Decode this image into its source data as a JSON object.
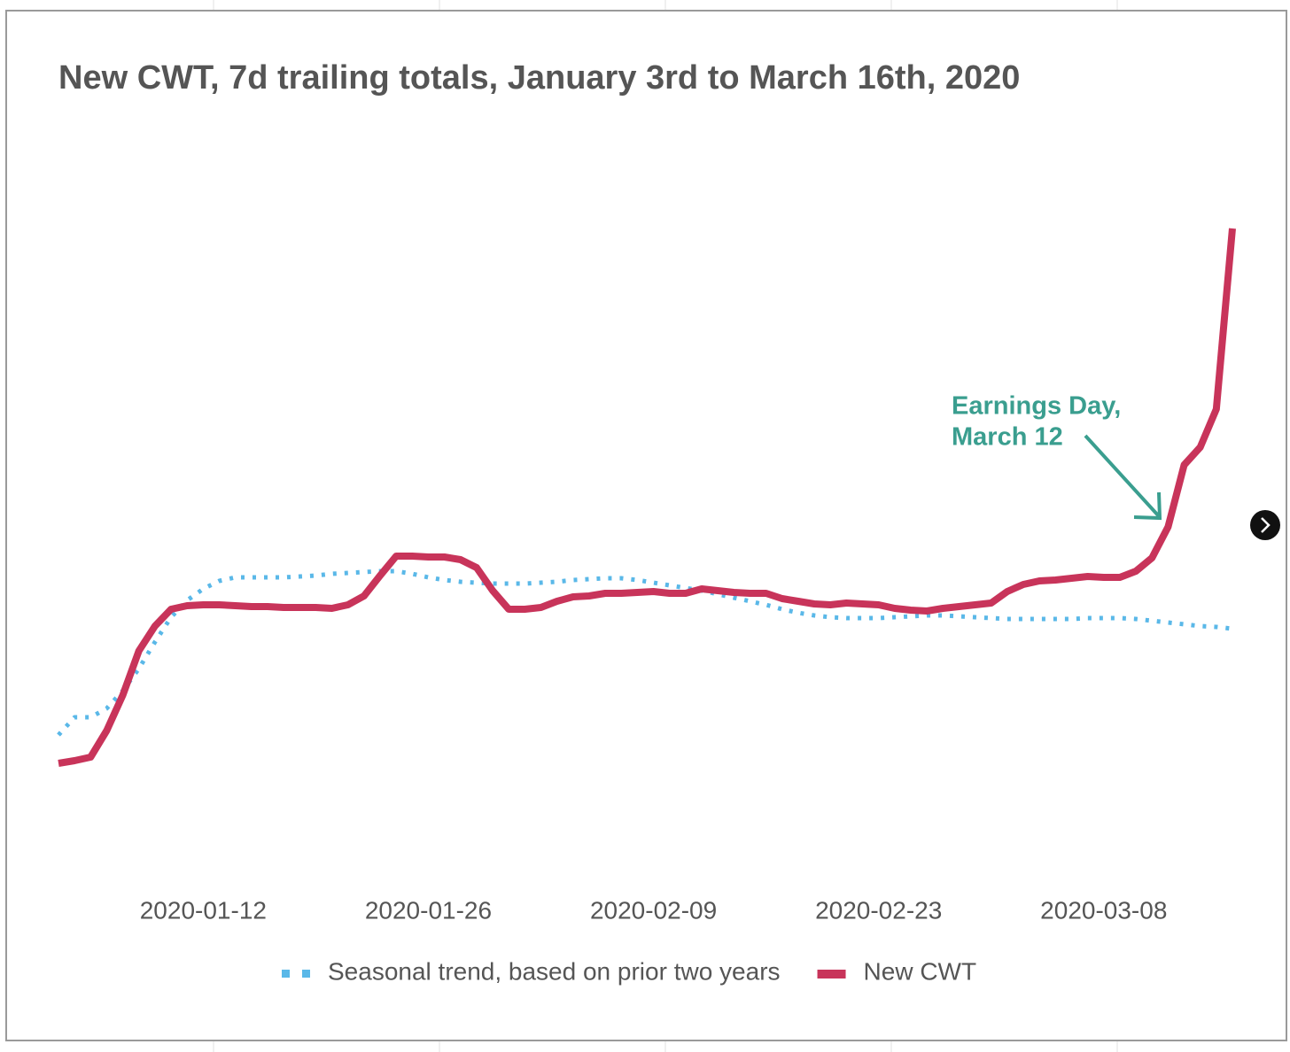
{
  "chart_data": {
    "type": "line",
    "title": "New CWT, 7d trailing totals, January 3rd to March 16th, 2020",
    "x": [
      "2020-01-03",
      "2020-01-04",
      "2020-01-05",
      "2020-01-06",
      "2020-01-07",
      "2020-01-08",
      "2020-01-09",
      "2020-01-10",
      "2020-01-11",
      "2020-01-12",
      "2020-01-13",
      "2020-01-14",
      "2020-01-15",
      "2020-01-16",
      "2020-01-17",
      "2020-01-18",
      "2020-01-19",
      "2020-01-20",
      "2020-01-21",
      "2020-01-22",
      "2020-01-23",
      "2020-01-24",
      "2020-01-25",
      "2020-01-26",
      "2020-01-27",
      "2020-01-28",
      "2020-01-29",
      "2020-01-30",
      "2020-01-31",
      "2020-02-01",
      "2020-02-02",
      "2020-02-03",
      "2020-02-04",
      "2020-02-05",
      "2020-02-06",
      "2020-02-07",
      "2020-02-08",
      "2020-02-09",
      "2020-02-10",
      "2020-02-11",
      "2020-02-12",
      "2020-02-13",
      "2020-02-14",
      "2020-02-15",
      "2020-02-16",
      "2020-02-17",
      "2020-02-18",
      "2020-02-19",
      "2020-02-20",
      "2020-02-21",
      "2020-02-22",
      "2020-02-23",
      "2020-02-24",
      "2020-02-25",
      "2020-02-26",
      "2020-02-27",
      "2020-02-28",
      "2020-02-29",
      "2020-03-01",
      "2020-03-02",
      "2020-03-03",
      "2020-03-04",
      "2020-03-05",
      "2020-03-06",
      "2020-03-07",
      "2020-03-08",
      "2020-03-09",
      "2020-03-10",
      "2020-03-11",
      "2020-03-12",
      "2020-03-13",
      "2020-03-14",
      "2020-03-15",
      "2020-03-16"
    ],
    "xlim": [
      "2020-01-03",
      "2020-03-16"
    ],
    "xticks": [
      "2020-01-12",
      "2020-01-26",
      "2020-02-09",
      "2020-02-23",
      "2020-03-08"
    ],
    "ylim": [
      0,
      800
    ],
    "series": [
      {
        "name": "Seasonal trend, based on prior two years",
        "color": "#5ab8e8",
        "style": "dotted",
        "values": [
          170,
          190,
          190,
          200,
          220,
          245,
          275,
          303,
          322,
          335,
          344,
          348,
          348,
          348,
          348,
          349,
          350,
          352,
          353,
          354,
          355,
          355,
          352,
          348,
          345,
          343,
          342,
          341,
          341,
          341,
          342,
          343,
          345,
          346,
          347,
          347,
          345,
          342,
          339,
          336,
          333,
          329,
          325,
          321,
          317,
          312,
          308,
          305,
          303,
          302,
          302,
          302,
          303,
          304,
          305,
          305,
          304,
          303,
          302,
          301,
          301,
          301,
          301,
          301,
          302,
          302,
          302,
          301,
          299,
          297,
          295,
          293,
          292,
          290
        ]
      },
      {
        "name": "New CWT",
        "color": "#c8345a",
        "style": "solid",
        "values": [
          138,
          141,
          145,
          175,
          215,
          265,
          293,
          312,
          316,
          317,
          317,
          316,
          315,
          315,
          314,
          314,
          314,
          313,
          317,
          327,
          350,
          372,
          372,
          371,
          371,
          368,
          359,
          333,
          312,
          312,
          314,
          321,
          326,
          327,
          330,
          330,
          331,
          332,
          330,
          330,
          335,
          333,
          331,
          330,
          330,
          324,
          321,
          318,
          317,
          319,
          318,
          317,
          313,
          311,
          310,
          313,
          315,
          317,
          319,
          332,
          340,
          344,
          345,
          347,
          349,
          348,
          348,
          355,
          370,
          405,
          475,
          495,
          538,
          742
        ]
      }
    ],
    "annotation": [
      "Earnings Day,",
      "March 12"
    ],
    "annotation_color": "#3a9e8f",
    "legend": "bottom"
  }
}
